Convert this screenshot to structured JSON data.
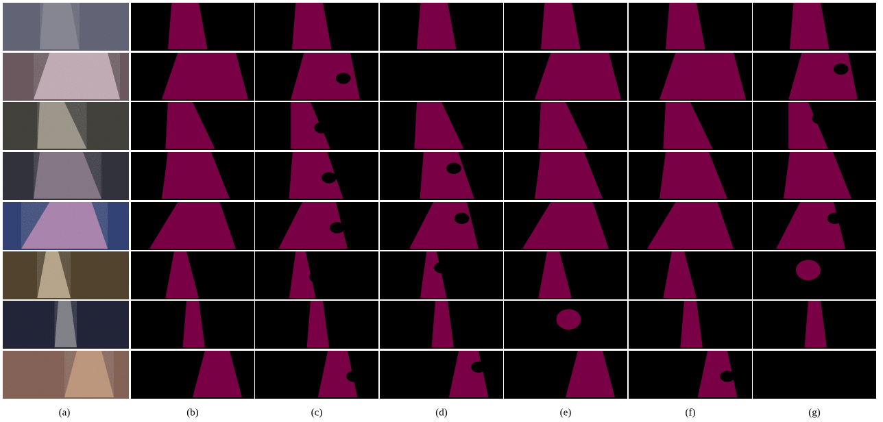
{
  "figure": {
    "column_labels": [
      "(a)",
      "(b)",
      "(c)",
      "(d)",
      "(e)",
      "(f)",
      "(g)"
    ]
  }
}
